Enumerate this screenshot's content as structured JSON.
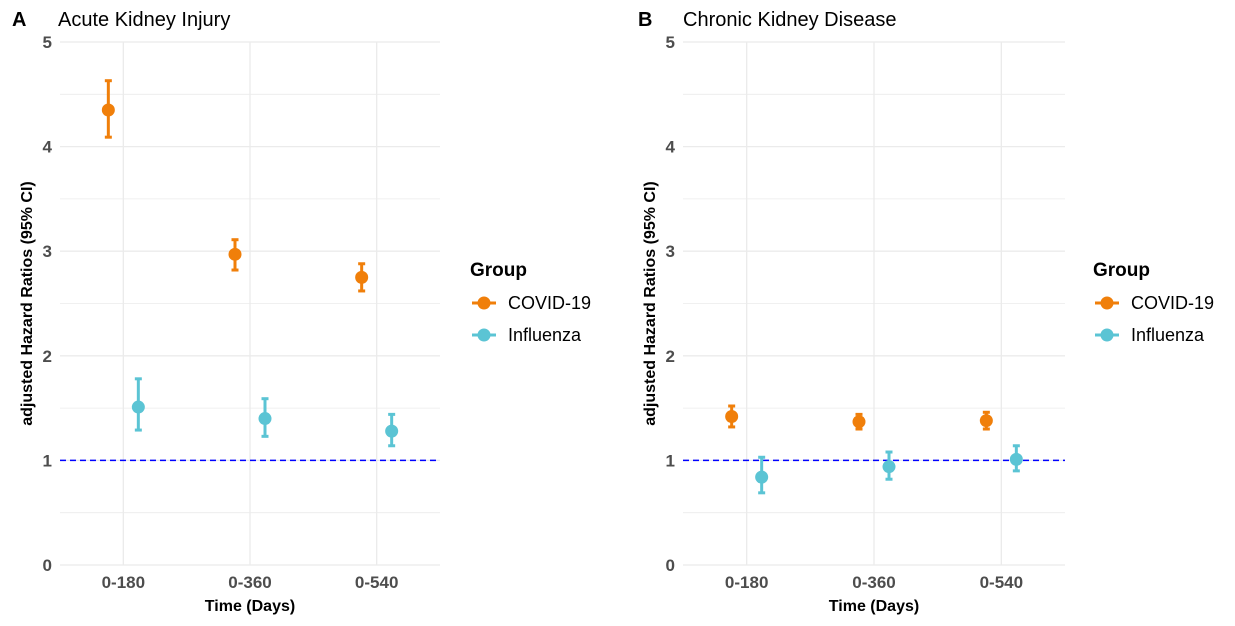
{
  "chart_data": [
    {
      "type": "scatter",
      "tag": "A",
      "title": "Acute Kidney Injury",
      "xlabel": "Time (Days)",
      "ylabel": "adjusted Hazard Ratios (95% CI)",
      "categories": [
        "0-180",
        "0-360",
        "0-540"
      ],
      "ylim": [
        0,
        5
      ],
      "yticks": [
        0,
        1,
        2,
        3,
        4,
        5
      ],
      "reference_line": 1,
      "grid": true,
      "legend": {
        "title": "Group",
        "position": "right"
      },
      "series": [
        {
          "name": "COVID-19",
          "color": "#f07f0a",
          "values": [
            4.35,
            2.97,
            2.75
          ],
          "lower": [
            4.09,
            2.82,
            2.62
          ],
          "upper": [
            4.63,
            3.11,
            2.88
          ]
        },
        {
          "name": "Influenza",
          "color": "#5bc4d4",
          "values": [
            1.51,
            1.4,
            1.28
          ],
          "lower": [
            1.29,
            1.23,
            1.14
          ],
          "upper": [
            1.78,
            1.59,
            1.44
          ]
        }
      ]
    },
    {
      "type": "scatter",
      "tag": "B",
      "title": "Chronic Kidney Disease",
      "xlabel": "Time (Days)",
      "ylabel": "adjusted Hazard Ratios (95% CI)",
      "categories": [
        "0-180",
        "0-360",
        "0-540"
      ],
      "ylim": [
        0,
        5
      ],
      "yticks": [
        0,
        1,
        2,
        3,
        4,
        5
      ],
      "reference_line": 1,
      "grid": true,
      "legend": {
        "title": "Group",
        "position": "right"
      },
      "series": [
        {
          "name": "COVID-19",
          "color": "#f07f0a",
          "values": [
            1.42,
            1.37,
            1.38
          ],
          "lower": [
            1.32,
            1.3,
            1.3
          ],
          "upper": [
            1.52,
            1.44,
            1.46
          ]
        },
        {
          "name": "Influenza",
          "color": "#5bc4d4",
          "values": [
            0.84,
            0.94,
            1.01
          ],
          "lower": [
            0.69,
            0.82,
            0.9
          ],
          "upper": [
            1.03,
            1.08,
            1.14
          ]
        }
      ]
    }
  ],
  "colors": {
    "grid": "#ebebeb",
    "reference_line": "#0000ff"
  }
}
